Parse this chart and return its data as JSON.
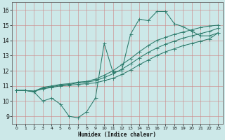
{
  "xlabel": "Humidex (Indice chaleur)",
  "bg_color": "#cce8e8",
  "grid_color": "#cc8888",
  "line_color": "#2a7a6a",
  "xlim": [
    -0.5,
    23.5
  ],
  "ylim": [
    8.5,
    16.5
  ],
  "xticks": [
    0,
    1,
    2,
    3,
    4,
    5,
    6,
    7,
    8,
    9,
    10,
    11,
    12,
    13,
    14,
    15,
    16,
    17,
    18,
    19,
    20,
    21,
    22,
    23
  ],
  "yticks": [
    9,
    10,
    11,
    12,
    13,
    14,
    15,
    16
  ],
  "wavy_x": [
    0,
    1,
    2,
    3,
    4,
    5,
    6,
    7,
    8,
    9,
    10,
    11,
    12,
    13,
    14,
    15,
    16,
    17,
    18,
    19,
    20,
    21,
    22,
    23
  ],
  "wavy_y": [
    10.7,
    10.7,
    10.6,
    10.0,
    10.2,
    9.8,
    9.0,
    8.9,
    9.3,
    10.2,
    13.8,
    11.9,
    12.0,
    14.4,
    15.4,
    15.3,
    15.9,
    15.9,
    15.1,
    14.9,
    14.6,
    14.3,
    14.3,
    14.5
  ],
  "line2_x": [
    0,
    1,
    2,
    3,
    4,
    5,
    6,
    7,
    8,
    9,
    10,
    11,
    12,
    13,
    14,
    15,
    16,
    17,
    18,
    19,
    20,
    21,
    22,
    23
  ],
  "line2_y": [
    10.7,
    10.7,
    10.65,
    10.8,
    10.9,
    11.0,
    11.05,
    11.1,
    11.15,
    11.2,
    11.35,
    11.5,
    11.75,
    12.05,
    12.4,
    12.7,
    13.0,
    13.25,
    13.45,
    13.65,
    13.8,
    13.95,
    14.1,
    14.5
  ],
  "line3_x": [
    0,
    1,
    2,
    3,
    4,
    5,
    6,
    7,
    8,
    9,
    10,
    11,
    12,
    13,
    14,
    15,
    16,
    17,
    18,
    19,
    20,
    21,
    22,
    23
  ],
  "line3_y": [
    10.7,
    10.7,
    10.65,
    10.85,
    10.95,
    11.05,
    11.1,
    11.2,
    11.25,
    11.35,
    11.55,
    11.8,
    12.1,
    12.45,
    12.85,
    13.2,
    13.5,
    13.75,
    13.95,
    14.15,
    14.3,
    14.45,
    14.6,
    14.8
  ],
  "line4_x": [
    0,
    1,
    2,
    3,
    4,
    5,
    6,
    7,
    8,
    9,
    10,
    11,
    12,
    13,
    14,
    15,
    16,
    17,
    18,
    19,
    20,
    21,
    22,
    23
  ],
  "line4_y": [
    10.7,
    10.7,
    10.65,
    10.9,
    11.0,
    11.1,
    11.15,
    11.25,
    11.3,
    11.45,
    11.7,
    12.0,
    12.4,
    12.8,
    13.25,
    13.65,
    14.0,
    14.2,
    14.4,
    14.55,
    14.7,
    14.85,
    14.95,
    15.0
  ]
}
